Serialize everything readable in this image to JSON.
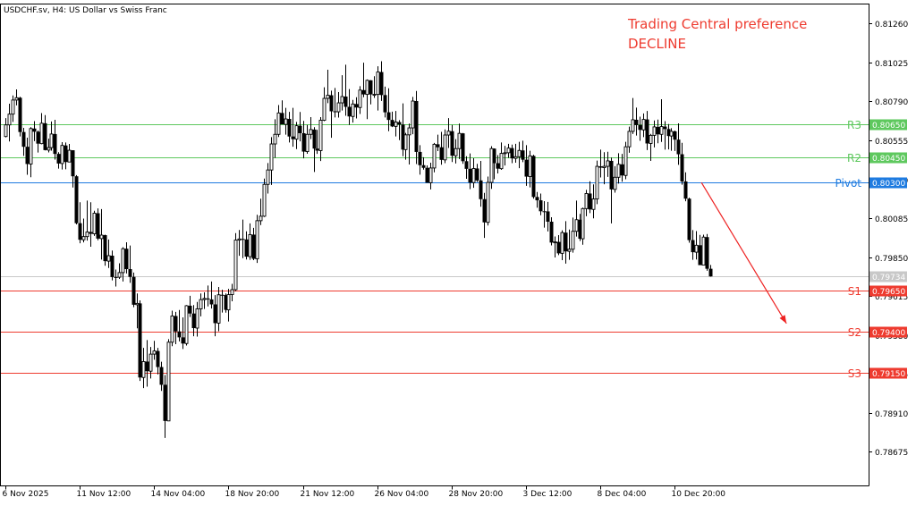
{
  "chart_title": "USDCHF.sv, H4:  US Dollar vs Swiss Franc",
  "annotation": {
    "line1": "Trading Central preference",
    "line2": "DECLINE",
    "color": "#ee3b2f"
  },
  "chart_data": {
    "type": "candlestick",
    "ylim": [
      0.7847,
      0.8138
    ],
    "y_ticks": [
      "0.81260",
      "0.81025",
      "0.80790",
      "0.80555",
      "0.80320",
      "0.80085",
      "0.79850",
      "0.79615",
      "0.79380",
      "0.79145",
      "0.78910",
      "0.78675"
    ],
    "x_ticks": [
      "6 Nov 2025",
      "11 Nov 12:00",
      "14 Nov 04:00",
      "18 Nov 20:00",
      "21 Nov 12:00",
      "26 Nov 04:00",
      "28 Nov 20:00",
      "3 Dec 12:00",
      "8 Dec 04:00",
      "10 Dec 20:00"
    ],
    "levels": [
      {
        "name": "R3",
        "price": "0.80650",
        "value": 0.8065,
        "color": "#5ec85e"
      },
      {
        "name": "R2",
        "price": "0.80450",
        "value": 0.8045,
        "color": "#5ec85e"
      },
      {
        "name": "Pivot",
        "price": "0.80300",
        "value": 0.803,
        "color": "#1e7be0"
      },
      {
        "name": "S1",
        "price": "0.79650",
        "value": 0.7965,
        "color": "#ee3b2f"
      },
      {
        "name": "S2",
        "price": "0.79400",
        "value": 0.794,
        "color": "#ee3b2f"
      },
      {
        "name": "S3",
        "price": "0.79150",
        "value": 0.7915,
        "color": "#ee3b2f"
      }
    ],
    "current_price": {
      "price": "0.79734",
      "value": 0.79734,
      "color": "#c8c8c8"
    },
    "arrow": {
      "from": {
        "bar": 196.5,
        "value": 0.803
      },
      "to": {
        "bar": 220.5,
        "value": 0.7945
      },
      "color": "#ee2222"
    },
    "candles": [
      [
        0.80578,
        0.80689,
        0.80573,
        0.80648
      ],
      [
        0.80648,
        0.80776,
        0.80548,
        0.80713
      ],
      [
        0.80713,
        0.80826,
        0.80666,
        0.80798
      ],
      [
        0.80798,
        0.80862,
        0.80766,
        0.80812
      ],
      [
        0.80812,
        0.80818,
        0.80578,
        0.80605
      ],
      [
        0.80605,
        0.8063,
        0.80461,
        0.80516
      ],
      [
        0.80516,
        0.80571,
        0.80347,
        0.80412
      ],
      [
        0.80412,
        0.80634,
        0.80332,
        0.80626
      ],
      [
        0.80626,
        0.80671,
        0.8055,
        0.80607
      ],
      [
        0.80607,
        0.80614,
        0.80481,
        0.80535
      ],
      [
        0.80535,
        0.80719,
        0.80531,
        0.80658
      ],
      [
        0.80658,
        0.80707,
        0.80494,
        0.80496
      ],
      [
        0.80496,
        0.80565,
        0.80482,
        0.80511
      ],
      [
        0.80511,
        0.80669,
        0.80493,
        0.80593
      ],
      [
        0.80593,
        0.80679,
        0.80439,
        0.80473
      ],
      [
        0.80473,
        0.80483,
        0.80384,
        0.80415
      ],
      [
        0.80415,
        0.80544,
        0.80379,
        0.80524
      ],
      [
        0.80524,
        0.80542,
        0.8038,
        0.80424
      ],
      [
        0.80424,
        0.80533,
        0.80424,
        0.80495
      ],
      [
        0.80495,
        0.80495,
        0.8027,
        0.80338
      ],
      [
        0.80338,
        0.80345,
        0.80048,
        0.80055
      ],
      [
        0.80055,
        0.80181,
        0.79934,
        0.79955
      ],
      [
        0.79955,
        0.80083,
        0.79939,
        0.79974
      ],
      [
        0.79974,
        0.80191,
        0.7995,
        0.80002
      ],
      [
        0.80002,
        0.80181,
        0.79913,
        0.79991
      ],
      [
        0.79991,
        0.8013,
        0.79978,
        0.80115
      ],
      [
        0.80115,
        0.80144,
        0.79952,
        0.79962
      ],
      [
        0.79962,
        0.8014,
        0.79835,
        0.79983
      ],
      [
        0.79983,
        0.79986,
        0.79798,
        0.79826
      ],
      [
        0.79826,
        0.79957,
        0.79785,
        0.79859
      ],
      [
        0.79859,
        0.7989,
        0.7971,
        0.7973
      ],
      [
        0.7973,
        0.79775,
        0.79673,
        0.79729
      ],
      [
        0.79729,
        0.79813,
        0.79719,
        0.79757
      ],
      [
        0.79757,
        0.7991,
        0.79703,
        0.79901
      ],
      [
        0.79901,
        0.7994,
        0.79752,
        0.79778
      ],
      [
        0.79778,
        0.7992,
        0.79695,
        0.79731
      ],
      [
        0.79731,
        0.79757,
        0.79548,
        0.79563
      ],
      [
        0.79563,
        0.79631,
        0.79421,
        0.79571
      ],
      [
        0.79571,
        0.79589,
        0.79103,
        0.79124
      ],
      [
        0.79124,
        0.79303,
        0.7906,
        0.7922
      ],
      [
        0.7922,
        0.7935,
        0.79069,
        0.79162
      ],
      [
        0.79162,
        0.79308,
        0.79118,
        0.79265
      ],
      [
        0.79265,
        0.79345,
        0.79231,
        0.79284
      ],
      [
        0.79284,
        0.79303,
        0.79143,
        0.79187
      ],
      [
        0.79187,
        0.79219,
        0.79043,
        0.7908
      ],
      [
        0.7908,
        0.79139,
        0.78759,
        0.78862
      ],
      [
        0.78862,
        0.79355,
        0.78865,
        0.79337
      ],
      [
        0.79337,
        0.79527,
        0.79313,
        0.79495
      ],
      [
        0.79495,
        0.7952,
        0.79325,
        0.79402
      ],
      [
        0.79402,
        0.79531,
        0.79342,
        0.79366
      ],
      [
        0.79366,
        0.79487,
        0.79296,
        0.79329
      ],
      [
        0.79329,
        0.79561,
        0.79317,
        0.79557
      ],
      [
        0.79557,
        0.79617,
        0.79489,
        0.7951
      ],
      [
        0.7951,
        0.79561,
        0.79373,
        0.79422
      ],
      [
        0.79422,
        0.7958,
        0.79371,
        0.79538
      ],
      [
        0.79538,
        0.79631,
        0.79493,
        0.79594
      ],
      [
        0.79594,
        0.79638,
        0.79537,
        0.79601
      ],
      [
        0.79601,
        0.79679,
        0.79553,
        0.79595
      ],
      [
        0.79595,
        0.79703,
        0.7954,
        0.79565
      ],
      [
        0.79565,
        0.79621,
        0.79373,
        0.79452
      ],
      [
        0.79452,
        0.7967,
        0.79403,
        0.79623
      ],
      [
        0.79623,
        0.79653,
        0.79516,
        0.79621
      ],
      [
        0.79621,
        0.79631,
        0.79515,
        0.79532
      ],
      [
        0.79532,
        0.79659,
        0.79462,
        0.79624
      ],
      [
        0.79624,
        0.79689,
        0.79584,
        0.79654
      ],
      [
        0.79654,
        0.79995,
        0.79645,
        0.79953
      ],
      [
        0.79953,
        0.80014,
        0.79858,
        0.7996
      ],
      [
        0.7996,
        0.80077,
        0.79844,
        0.79957
      ],
      [
        0.79957,
        0.80006,
        0.79836,
        0.79853
      ],
      [
        0.79853,
        0.80054,
        0.79834,
        0.79986
      ],
      [
        0.79986,
        0.80027,
        0.79832,
        0.7984
      ],
      [
        0.7984,
        0.80106,
        0.79815,
        0.8007
      ],
      [
        0.8007,
        0.80203,
        0.80044,
        0.80097
      ],
      [
        0.80097,
        0.80324,
        0.80092,
        0.80289
      ],
      [
        0.80289,
        0.80418,
        0.80234,
        0.80376
      ],
      [
        0.80376,
        0.80574,
        0.80286,
        0.80533
      ],
      [
        0.80533,
        0.80682,
        0.80449,
        0.80591
      ],
      [
        0.80591,
        0.80768,
        0.80575,
        0.8072
      ],
      [
        0.8072,
        0.80796,
        0.80651,
        0.80651
      ],
      [
        0.80651,
        0.80751,
        0.80589,
        0.80684
      ],
      [
        0.80684,
        0.80727,
        0.80542,
        0.80578
      ],
      [
        0.80578,
        0.80751,
        0.80516,
        0.80562
      ],
      [
        0.80562,
        0.80666,
        0.80502,
        0.80643
      ],
      [
        0.80643,
        0.80726,
        0.80549,
        0.80598
      ],
      [
        0.80598,
        0.80672,
        0.80446,
        0.80487
      ],
      [
        0.80487,
        0.80648,
        0.80474,
        0.80591
      ],
      [
        0.80591,
        0.80695,
        0.80563,
        0.8062
      ],
      [
        0.8062,
        0.80634,
        0.80364,
        0.80505
      ],
      [
        0.80505,
        0.80618,
        0.80473,
        0.80493
      ],
      [
        0.80493,
        0.80695,
        0.8043,
        0.80676
      ],
      [
        0.80676,
        0.80875,
        0.80671,
        0.80808
      ],
      [
        0.80808,
        0.80981,
        0.80779,
        0.80827
      ],
      [
        0.80827,
        0.80855,
        0.8057,
        0.8073
      ],
      [
        0.8073,
        0.80871,
        0.80693,
        0.80727
      ],
      [
        0.80727,
        0.80846,
        0.80692,
        0.80781
      ],
      [
        0.80781,
        0.80948,
        0.80735,
        0.80819
      ],
      [
        0.80819,
        0.81011,
        0.80703,
        0.80757
      ],
      [
        0.80757,
        0.80864,
        0.80648,
        0.80699
      ],
      [
        0.80699,
        0.80799,
        0.80662,
        0.80774
      ],
      [
        0.80774,
        0.80815,
        0.80687,
        0.80753
      ],
      [
        0.80753,
        0.80882,
        0.80714,
        0.80858
      ],
      [
        0.80858,
        0.81023,
        0.80815,
        0.80832
      ],
      [
        0.80832,
        0.80922,
        0.80683,
        0.80917
      ],
      [
        0.80917,
        0.80918,
        0.80772,
        0.80832
      ],
      [
        0.80832,
        0.80942,
        0.80811,
        0.80832
      ],
      [
        0.80832,
        0.81002,
        0.80735,
        0.80967
      ],
      [
        0.80967,
        0.81032,
        0.80793,
        0.80828
      ],
      [
        0.80828,
        0.80879,
        0.80693,
        0.80724
      ],
      [
        0.80724,
        0.80869,
        0.8061,
        0.80678
      ],
      [
        0.80678,
        0.80728,
        0.80635,
        0.80639
      ],
      [
        0.80639,
        0.80732,
        0.80578,
        0.80665
      ],
      [
        0.80665,
        0.80677,
        0.80556,
        0.8065
      ],
      [
        0.8065,
        0.80778,
        0.80459,
        0.80499
      ],
      [
        0.80499,
        0.806,
        0.80438,
        0.80588
      ],
      [
        0.80588,
        0.80656,
        0.80409,
        0.8063
      ],
      [
        0.8063,
        0.80817,
        0.80592,
        0.80792
      ],
      [
        0.80792,
        0.80853,
        0.80412,
        0.80485
      ],
      [
        0.80485,
        0.80526,
        0.80348,
        0.80405
      ],
      [
        0.80405,
        0.80453,
        0.80378,
        0.80389
      ],
      [
        0.80389,
        0.80404,
        0.80299,
        0.80299
      ],
      [
        0.80299,
        0.8042,
        0.80259,
        0.80388
      ],
      [
        0.80388,
        0.80539,
        0.80362,
        0.80531
      ],
      [
        0.80531,
        0.80589,
        0.8049,
        0.80513
      ],
      [
        0.80513,
        0.80606,
        0.80408,
        0.80437
      ],
      [
        0.80437,
        0.80621,
        0.80417,
        0.80587
      ],
      [
        0.80587,
        0.80689,
        0.80509,
        0.8061
      ],
      [
        0.8061,
        0.80648,
        0.80424,
        0.80462
      ],
      [
        0.80462,
        0.80562,
        0.80415,
        0.80505
      ],
      [
        0.80505,
        0.80656,
        0.80442,
        0.80597
      ],
      [
        0.80597,
        0.80599,
        0.80413,
        0.80429
      ],
      [
        0.80429,
        0.80459,
        0.80323,
        0.80383
      ],
      [
        0.80383,
        0.80476,
        0.80261,
        0.803
      ],
      [
        0.803,
        0.80447,
        0.80268,
        0.80385
      ],
      [
        0.80385,
        0.80413,
        0.80303,
        0.80313
      ],
      [
        0.80313,
        0.80431,
        0.80154,
        0.802
      ],
      [
        0.802,
        0.80238,
        0.79966,
        0.8006
      ],
      [
        0.8006,
        0.80336,
        0.80041,
        0.80301
      ],
      [
        0.80301,
        0.8052,
        0.80262,
        0.80505
      ],
      [
        0.80505,
        0.80506,
        0.8032,
        0.80417
      ],
      [
        0.80417,
        0.80466,
        0.80355,
        0.80384
      ],
      [
        0.80384,
        0.80542,
        0.80377,
        0.80476
      ],
      [
        0.80476,
        0.80522,
        0.80403,
        0.8048
      ],
      [
        0.8048,
        0.80534,
        0.80449,
        0.80508
      ],
      [
        0.80508,
        0.80529,
        0.80417,
        0.80446
      ],
      [
        0.80446,
        0.80534,
        0.8042,
        0.80456
      ],
      [
        0.80456,
        0.80546,
        0.80387,
        0.80494
      ],
      [
        0.80494,
        0.80553,
        0.80423,
        0.80438
      ],
      [
        0.80438,
        0.80526,
        0.8028,
        0.80336
      ],
      [
        0.80336,
        0.80492,
        0.80271,
        0.80461
      ],
      [
        0.80461,
        0.80468,
        0.80203,
        0.80213
      ],
      [
        0.80213,
        0.80243,
        0.80148,
        0.80193
      ],
      [
        0.80193,
        0.80234,
        0.80103,
        0.80127
      ],
      [
        0.80127,
        0.80188,
        0.80028,
        0.80126
      ],
      [
        0.80126,
        0.80183,
        0.80005,
        0.80064
      ],
      [
        0.80064,
        0.80091,
        0.79921,
        0.79938
      ],
      [
        0.79938,
        0.79975,
        0.79848,
        0.79942
      ],
      [
        0.79942,
        0.79983,
        0.79862,
        0.79873
      ],
      [
        0.79873,
        0.80012,
        0.79832,
        0.79998
      ],
      [
        0.79998,
        0.80067,
        0.79811,
        0.79885
      ],
      [
        0.79885,
        0.80017,
        0.79834,
        0.79898
      ],
      [
        0.79898,
        0.80089,
        0.79877,
        0.80006
      ],
      [
        0.80006,
        0.80191,
        0.79974,
        0.80076
      ],
      [
        0.80076,
        0.80111,
        0.79947,
        0.79961
      ],
      [
        0.79961,
        0.80149,
        0.79925,
        0.80143
      ],
      [
        0.80143,
        0.80256,
        0.80097,
        0.80234
      ],
      [
        0.80234,
        0.80308,
        0.80116,
        0.80138
      ],
      [
        0.80138,
        0.80289,
        0.80084,
        0.80201
      ],
      [
        0.80201,
        0.80433,
        0.8017,
        0.80398
      ],
      [
        0.80398,
        0.80499,
        0.80331,
        0.8039
      ],
      [
        0.8039,
        0.80483,
        0.8029,
        0.80398
      ],
      [
        0.80398,
        0.80486,
        0.80334,
        0.80431
      ],
      [
        0.80431,
        0.80451,
        0.80054,
        0.80259
      ],
      [
        0.80259,
        0.80399,
        0.80239,
        0.80332
      ],
      [
        0.80332,
        0.80477,
        0.80294,
        0.8041
      ],
      [
        0.8041,
        0.80473,
        0.80305,
        0.80343
      ],
      [
        0.80343,
        0.80546,
        0.8032,
        0.80516
      ],
      [
        0.80516,
        0.80638,
        0.8048,
        0.80609
      ],
      [
        0.80609,
        0.8081,
        0.80593,
        0.80679
      ],
      [
        0.80679,
        0.80752,
        0.80584,
        0.80647
      ],
      [
        0.80647,
        0.80698,
        0.80552,
        0.80618
      ],
      [
        0.80618,
        0.80717,
        0.80574,
        0.80681
      ],
      [
        0.80681,
        0.80732,
        0.80496,
        0.80536
      ],
      [
        0.80536,
        0.80594,
        0.80431,
        0.80585
      ],
      [
        0.80585,
        0.80675,
        0.80512,
        0.80636
      ],
      [
        0.80636,
        0.8068,
        0.80537,
        0.80591
      ],
      [
        0.80591,
        0.80803,
        0.80545,
        0.80638
      ],
      [
        0.80638,
        0.80671,
        0.80499,
        0.80623
      ],
      [
        0.80623,
        0.80653,
        0.805,
        0.80581
      ],
      [
        0.80581,
        0.80628,
        0.80492,
        0.80609
      ],
      [
        0.80609,
        0.80614,
        0.80491,
        0.80559
      ],
      [
        0.80559,
        0.80657,
        0.80407,
        0.80471
      ],
      [
        0.80471,
        0.8054,
        0.80287,
        0.80307
      ],
      [
        0.80307,
        0.80362,
        0.80187,
        0.80203
      ],
      [
        0.80203,
        0.80209,
        0.79937,
        0.79953
      ],
      [
        0.79953,
        0.80013,
        0.79834,
        0.7988
      ],
      [
        0.7988,
        0.80007,
        0.79836,
        0.79922
      ],
      [
        0.79922,
        0.79984,
        0.79803,
        0.79802
      ],
      [
        0.79802,
        0.79986,
        0.79801,
        0.79971
      ],
      [
        0.79971,
        0.7999,
        0.79768,
        0.7978
      ],
      [
        0.7978,
        0.79803,
        0.79733,
        0.79734
      ]
    ]
  }
}
